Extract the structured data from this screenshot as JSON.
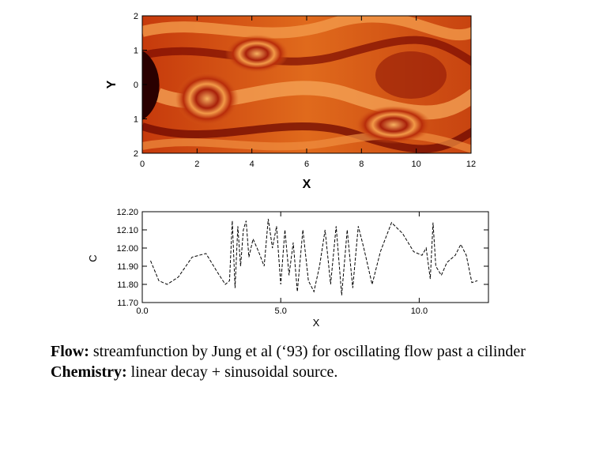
{
  "charts": {
    "field": {
      "type": "heatmap",
      "xlabel": "X",
      "ylabel": "Y",
      "xlim": [
        0,
        12
      ],
      "ylim": [
        -2,
        2
      ],
      "x_ticks": [
        "0",
        "2",
        "4",
        "6",
        "8",
        "10",
        "12"
      ],
      "y_ticks": [
        "2",
        "1",
        "0",
        "1",
        "2"
      ],
      "colors": {
        "dark": "#5a0000",
        "mid": "#d24a10",
        "light": "#f5a257",
        "cylinder": "#2a0000"
      }
    },
    "line": {
      "type": "line",
      "xlabel": "X",
      "ylabel": "C",
      "xlim": [
        0,
        12.5
      ],
      "ylim": [
        11.7,
        12.2
      ],
      "x_ticks": [
        "0.0",
        "5.0",
        "10.0"
      ],
      "y_ticks": [
        "12.20",
        "12.10",
        "12.00",
        "11.90",
        "11.80",
        "11.70"
      ],
      "x": [
        0.3,
        0.6,
        0.9,
        1.3,
        1.8,
        2.3,
        2.7,
        3.0,
        3.15,
        3.25,
        3.35,
        3.45,
        3.55,
        3.65,
        3.75,
        3.85,
        4.0,
        4.2,
        4.4,
        4.55,
        4.7,
        4.85,
        5.0,
        5.15,
        5.3,
        5.45,
        5.6,
        5.8,
        6.0,
        6.2,
        6.4,
        6.6,
        6.8,
        7.0,
        7.2,
        7.4,
        7.6,
        7.8,
        8.0,
        8.3,
        8.6,
        9.0,
        9.4,
        9.8,
        10.1,
        10.25,
        10.4,
        10.5,
        10.6,
        10.8,
        11.0,
        11.3,
        11.5,
        11.7,
        11.9,
        12.1
      ],
      "y": [
        11.93,
        11.82,
        11.8,
        11.84,
        11.95,
        11.97,
        11.87,
        11.8,
        11.82,
        12.15,
        11.78,
        12.12,
        11.9,
        12.1,
        12.15,
        11.95,
        12.05,
        11.98,
        11.9,
        12.16,
        12.0,
        12.12,
        11.8,
        12.1,
        11.85,
        12.03,
        11.76,
        12.1,
        11.82,
        11.76,
        11.9,
        12.1,
        11.8,
        12.12,
        11.74,
        12.1,
        11.78,
        12.12,
        12.0,
        11.8,
        11.98,
        12.14,
        12.08,
        11.98,
        11.96,
        12.0,
        11.83,
        12.14,
        11.9,
        11.85,
        11.92,
        11.96,
        12.02,
        11.96,
        11.81,
        11.82
      ]
    }
  },
  "caption": {
    "flow_label": "Flow:",
    "flow_text": " streamfunction by Jung et al (‘93) for oscillating flow past a cilinder",
    "chem_label": "Chemistry:",
    "chem_text": " linear decay + sinusoidal source."
  }
}
